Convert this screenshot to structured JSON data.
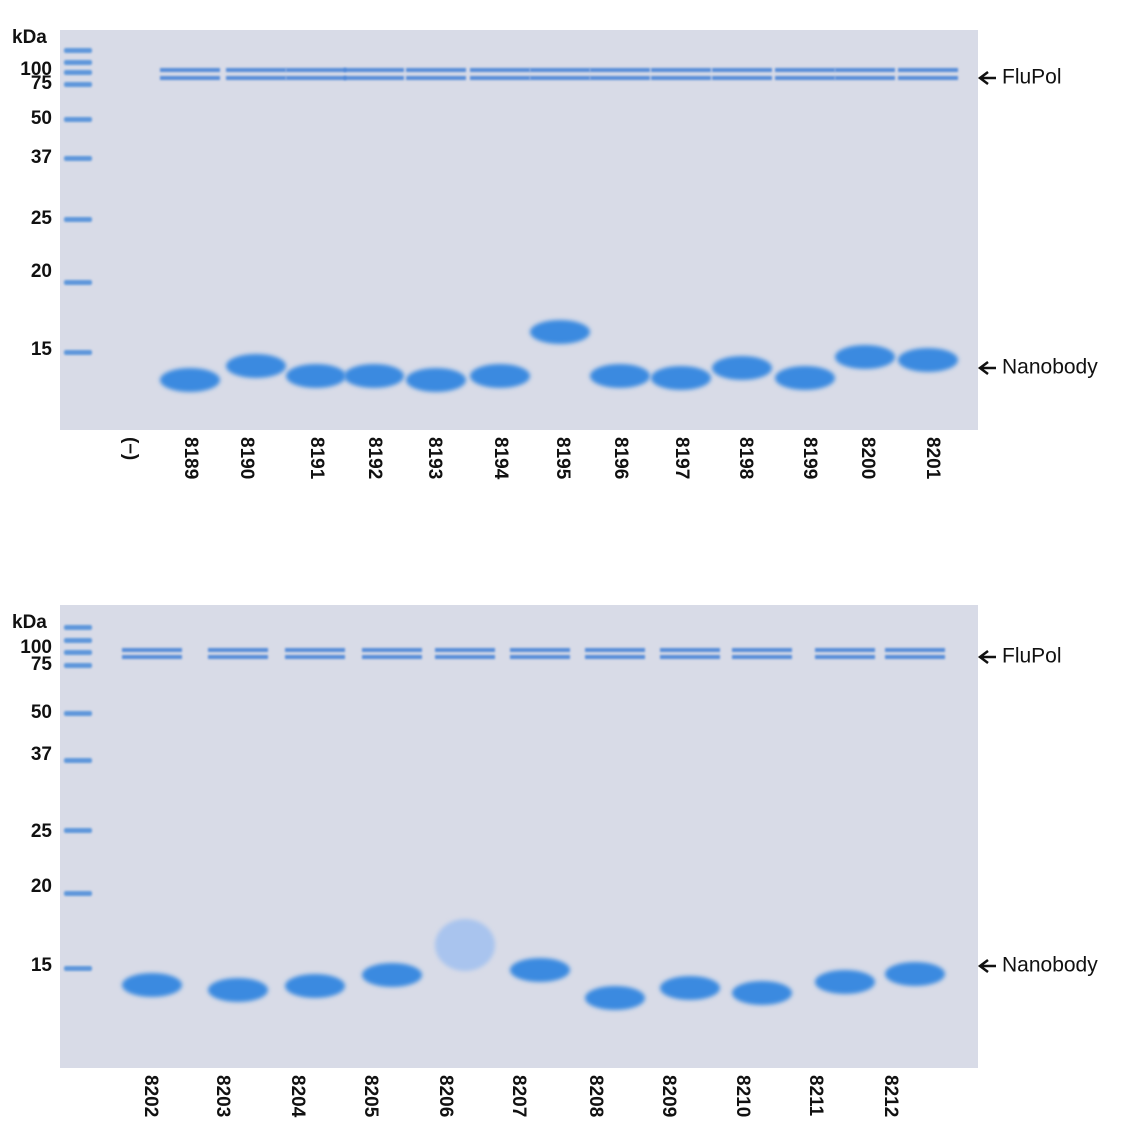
{
  "panels": [
    {
      "unit": "kDa",
      "markers": [
        "100",
        "75",
        "50",
        "37",
        "25",
        "20",
        "15"
      ],
      "lanes": [
        "(–)",
        "8189",
        "8190",
        "8191",
        "8192",
        "8193",
        "8194",
        "8195",
        "8196",
        "8197",
        "8198",
        "8199",
        "8200",
        "8201"
      ],
      "annotations": [
        "FluPol",
        "Nanobody"
      ]
    },
    {
      "unit": "kDa",
      "markers": [
        "100",
        "75",
        "50",
        "37",
        "25",
        "20",
        "15"
      ],
      "lanes": [
        "8202",
        "8203",
        "8204",
        "8205",
        "8206",
        "8207",
        "8208",
        "8209",
        "8210",
        "8211",
        "8212"
      ],
      "annotations": [
        "FluPol",
        "Nanobody"
      ]
    }
  ]
}
